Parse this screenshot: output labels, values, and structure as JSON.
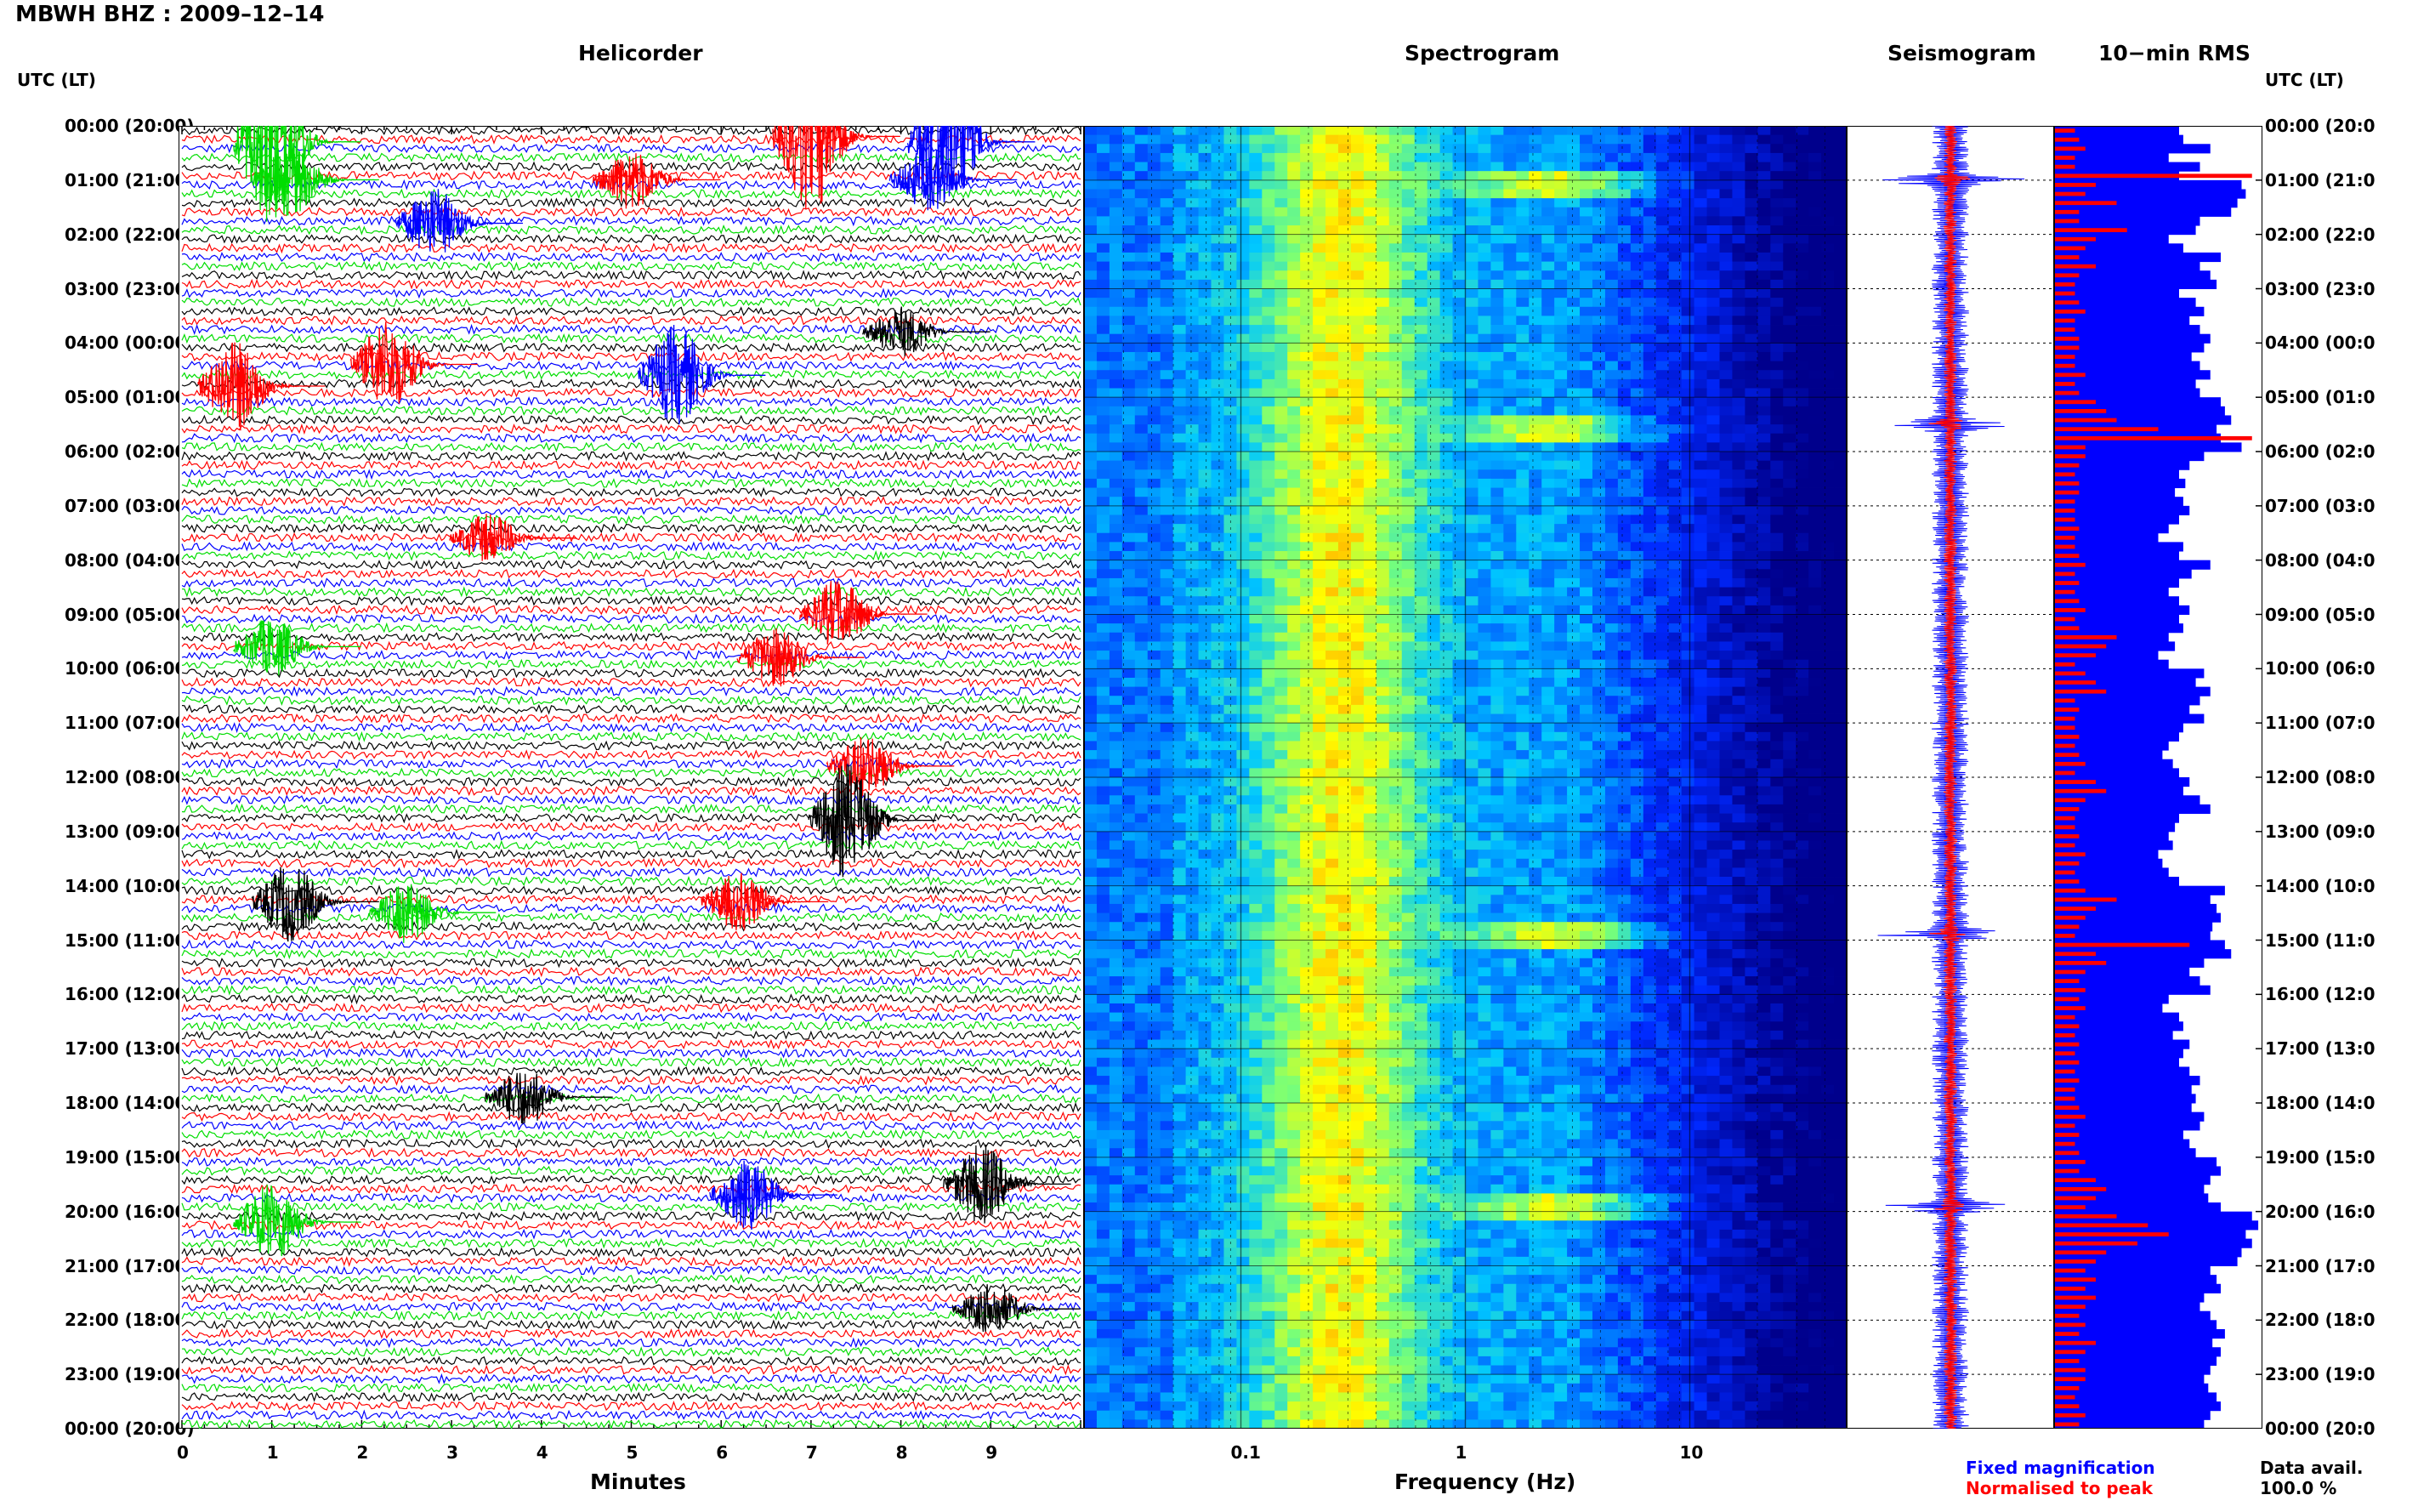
{
  "title": "MBWH BHZ : 2009–12–14",
  "utc_header_left": "UTC (LT)",
  "utc_header_right": "UTC (LT)",
  "panels": {
    "helicorder": "Helicorder",
    "spectrogram": "Spectrogram",
    "seismogram": "Seismogram",
    "rms": "10−min RMS"
  },
  "xlabels": {
    "minutes": "Minutes",
    "frequency": "Frequency (Hz)"
  },
  "legend": {
    "fixed": "Fixed magnification",
    "normalised": "Normalised to peak",
    "fixed_color": "#0000ff",
    "normalised_color": "#ff0000"
  },
  "data_avail": {
    "label": "Data avail.",
    "value": "100.0 %"
  },
  "time_labels_left": [
    "00:00 (20:00)",
    "01:00 (21:00)",
    "02:00 (22:00)",
    "03:00 (23:00)",
    "04:00 (00:00)",
    "05:00 (01:00)",
    "06:00 (02:00)",
    "07:00 (03:00)",
    "08:00 (04:00)",
    "09:00 (05:00)",
    "10:00 (06:00)",
    "11:00 (07:00)",
    "12:00 (08:00)",
    "13:00 (09:00)",
    "14:00 (10:00)",
    "15:00 (11:00)",
    "16:00 (12:00)",
    "17:00 (13:00)",
    "18:00 (14:00)",
    "19:00 (15:00)",
    "20:00 (16:00)",
    "21:00 (17:00)",
    "22:00 (18:00)",
    "23:00 (19:00)",
    "00:00 (20:00)"
  ],
  "time_labels_right": [
    "00:00 (20:0",
    "01:00 (21:0",
    "02:00 (22:0",
    "03:00 (23:0",
    "04:00 (00:0",
    "05:00 (01:0",
    "06:00 (02:0",
    "07:00 (03:0",
    "08:00 (04:0",
    "09:00 (05:0",
    "10:00 (06:0",
    "11:00 (07:0",
    "12:00 (08:0",
    "13:00 (09:0",
    "14:00 (10:0",
    "15:00 (11:0",
    "16:00 (12:0",
    "17:00 (13:0",
    "18:00 (14:0",
    "19:00 (15:0",
    "20:00 (16:0",
    "21:00 (17:0",
    "22:00 (18:0",
    "23:00 (19:0",
    "00:00 (20:0"
  ],
  "chart_data": [
    {
      "type": "line",
      "name": "helicorder",
      "title": "Helicorder",
      "xlabel": "Minutes",
      "x_ticks": [
        "0",
        "1",
        "2",
        "3",
        "4",
        "5",
        "6",
        "7",
        "8",
        "9"
      ],
      "xlim": [
        0,
        10
      ],
      "trace_colors": [
        "#000000",
        "#ff0000",
        "#0000ff",
        "#00dd00"
      ],
      "lines_per_hour": 6,
      "hours": 24,
      "bursts": [
        {
          "hour": 0.2,
          "minute": 1.0,
          "color": "#00dd00",
          "amp": 3.5
        },
        {
          "hour": 0.1,
          "minute": 7.0,
          "color": "#ff0000",
          "amp": 3.0
        },
        {
          "hour": 0.2,
          "minute": 8.5,
          "color": "#0000ff",
          "amp": 3.0
        },
        {
          "hour": 0.9,
          "minute": 1.2,
          "color": "#00dd00",
          "amp": 1.5
        },
        {
          "hour": 0.9,
          "minute": 5.0,
          "color": "#ff0000",
          "amp": 1.2
        },
        {
          "hour": 0.9,
          "minute": 8.3,
          "color": "#0000ff",
          "amp": 1.3
        },
        {
          "hour": 1.7,
          "minute": 2.8,
          "color": "#0000ff",
          "amp": 1.4
        },
        {
          "hour": 4.3,
          "minute": 2.3,
          "color": "#ff0000",
          "amp": 1.8
        },
        {
          "hour": 4.7,
          "minute": 0.6,
          "color": "#ff0000",
          "amp": 1.8
        },
        {
          "hour": 4.5,
          "minute": 5.5,
          "color": "#0000ff",
          "amp": 2.0
        },
        {
          "hour": 3.7,
          "minute": 8.0,
          "color": "#000000",
          "amp": 1.0
        },
        {
          "hour": 7.5,
          "minute": 3.4,
          "color": "#ff0000",
          "amp": 1.0
        },
        {
          "hour": 8.9,
          "minute": 7.3,
          "color": "#ff0000",
          "amp": 1.4
        },
        {
          "hour": 9.5,
          "minute": 1.0,
          "color": "#00dd00",
          "amp": 1.2
        },
        {
          "hour": 9.7,
          "minute": 6.6,
          "color": "#ff0000",
          "amp": 1.2
        },
        {
          "hour": 11.7,
          "minute": 7.6,
          "color": "#ff0000",
          "amp": 1.2
        },
        {
          "hour": 12.7,
          "minute": 7.4,
          "color": "#000000",
          "amp": 2.3
        },
        {
          "hour": 14.2,
          "minute": 1.2,
          "color": "#000000",
          "amp": 1.6
        },
        {
          "hour": 14.4,
          "minute": 2.5,
          "color": "#00dd00",
          "amp": 1.2
        },
        {
          "hour": 14.2,
          "minute": 6.2,
          "color": "#ff0000",
          "amp": 1.2
        },
        {
          "hour": 17.8,
          "minute": 3.8,
          "color": "#000000",
          "amp": 1.2
        },
        {
          "hour": 19.6,
          "minute": 6.3,
          "color": "#0000ff",
          "amp": 1.4
        },
        {
          "hour": 19.4,
          "minute": 8.9,
          "color": "#000000",
          "amp": 1.6
        },
        {
          "hour": 20.1,
          "minute": 1.0,
          "color": "#00dd00",
          "amp": 1.6
        },
        {
          "hour": 21.7,
          "minute": 9.0,
          "color": "#000000",
          "amp": 1.0
        }
      ]
    },
    {
      "type": "heatmap",
      "name": "spectrogram",
      "title": "Spectrogram",
      "xlabel": "Frequency (Hz)",
      "x_scale": "log",
      "xlim": [
        0.02,
        50
      ],
      "x_ticks": [
        "0.1",
        "1",
        "10"
      ],
      "x_tick_values": [
        0.1,
        1,
        10
      ],
      "ylim_hours": [
        0,
        24
      ],
      "peak_band_hz": [
        0.2,
        0.4
      ],
      "strong_rows_hour": [
        1.0,
        5.5,
        14.9,
        19.9
      ]
    },
    {
      "type": "line",
      "name": "seismogram",
      "title": "Seismogram",
      "series": [
        {
          "name": "Fixed magnification",
          "color": "#0000ff"
        },
        {
          "name": "Normalised to peak",
          "color": "#ff0000"
        }
      ],
      "spikes_hour": [
        1.0,
        5.5,
        14.9,
        19.9
      ]
    },
    {
      "type": "bar",
      "name": "rms",
      "title": "10−min RMS",
      "orientation": "horizontal",
      "bins_per_hour": 6,
      "blue_values": [
        0.6,
        0.62,
        0.75,
        0.55,
        0.7,
        0.6,
        0.9,
        0.92,
        0.88,
        0.85,
        0.7,
        0.68,
        0.55,
        0.62,
        0.8,
        0.7,
        0.75,
        0.78,
        0.6,
        0.68,
        0.72,
        0.65,
        0.7,
        0.75,
        0.72,
        0.66,
        0.7,
        0.75,
        0.68,
        0.7,
        0.8,
        0.82,
        0.85,
        0.78,
        0.8,
        0.9,
        0.72,
        0.65,
        0.6,
        0.63,
        0.58,
        0.62,
        0.65,
        0.6,
        0.55,
        0.5,
        0.62,
        0.6,
        0.75,
        0.66,
        0.6,
        0.55,
        0.6,
        0.65,
        0.6,
        0.62,
        0.55,
        0.58,
        0.5,
        0.55,
        0.72,
        0.68,
        0.75,
        0.7,
        0.65,
        0.72,
        0.62,
        0.6,
        0.55,
        0.52,
        0.57,
        0.6,
        0.65,
        0.62,
        0.7,
        0.75,
        0.6,
        0.58,
        0.55,
        0.57,
        0.5,
        0.52,
        0.55,
        0.6,
        0.82,
        0.75,
        0.78,
        0.8,
        0.76,
        0.75,
        0.82,
        0.85,
        0.72,
        0.65,
        0.7,
        0.75,
        0.55,
        0.52,
        0.6,
        0.62,
        0.57,
        0.65,
        0.62,
        0.6,
        0.65,
        0.7,
        0.66,
        0.68,
        0.66,
        0.72,
        0.7,
        0.62,
        0.65,
        0.68,
        0.78,
        0.8,
        0.75,
        0.72,
        0.74,
        0.8,
        0.95,
        0.98,
        0.92,
        0.95,
        0.9,
        0.88,
        0.75,
        0.78,
        0.8,
        0.72,
        0.7,
        0.75,
        0.78,
        0.82,
        0.76,
        0.8,
        0.78,
        0.75,
        0.72,
        0.74,
        0.78,
        0.8,
        0.75,
        0.72
      ],
      "red_values": [
        0.1,
        0.12,
        0.15,
        0.1,
        0.1,
        0.95,
        0.2,
        0.15,
        0.3,
        0.12,
        0.12,
        0.35,
        0.2,
        0.15,
        0.12,
        0.2,
        0.12,
        0.1,
        0.1,
        0.12,
        0.15,
        0.1,
        0.1,
        0.12,
        0.12,
        0.1,
        0.1,
        0.15,
        0.1,
        0.12,
        0.2,
        0.25,
        0.3,
        0.5,
        0.95,
        0.15,
        0.15,
        0.12,
        0.1,
        0.12,
        0.12,
        0.1,
        0.1,
        0.1,
        0.12,
        0.1,
        0.1,
        0.12,
        0.15,
        0.1,
        0.12,
        0.1,
        0.12,
        0.15,
        0.1,
        0.12,
        0.3,
        0.25,
        0.2,
        0.1,
        0.15,
        0.2,
        0.25,
        0.1,
        0.12,
        0.1,
        0.1,
        0.12,
        0.1,
        0.12,
        0.15,
        0.1,
        0.2,
        0.25,
        0.15,
        0.12,
        0.1,
        0.1,
        0.12,
        0.1,
        0.15,
        0.12,
        0.1,
        0.12,
        0.15,
        0.3,
        0.2,
        0.15,
        0.12,
        0.1,
        0.65,
        0.2,
        0.25,
        0.15,
        0.12,
        0.15,
        0.12,
        0.15,
        0.1,
        0.12,
        0.1,
        0.12,
        0.1,
        0.12,
        0.1,
        0.12,
        0.1,
        0.1,
        0.12,
        0.15,
        0.1,
        0.12,
        0.1,
        0.12,
        0.15,
        0.12,
        0.2,
        0.25,
        0.2,
        0.15,
        0.3,
        0.45,
        0.55,
        0.4,
        0.25,
        0.2,
        0.15,
        0.2,
        0.15,
        0.2,
        0.15,
        0.12,
        0.15,
        0.12,
        0.2,
        0.15,
        0.12,
        0.15,
        0.15,
        0.12,
        0.1,
        0.12,
        0.15,
        0.12
      ]
    }
  ]
}
